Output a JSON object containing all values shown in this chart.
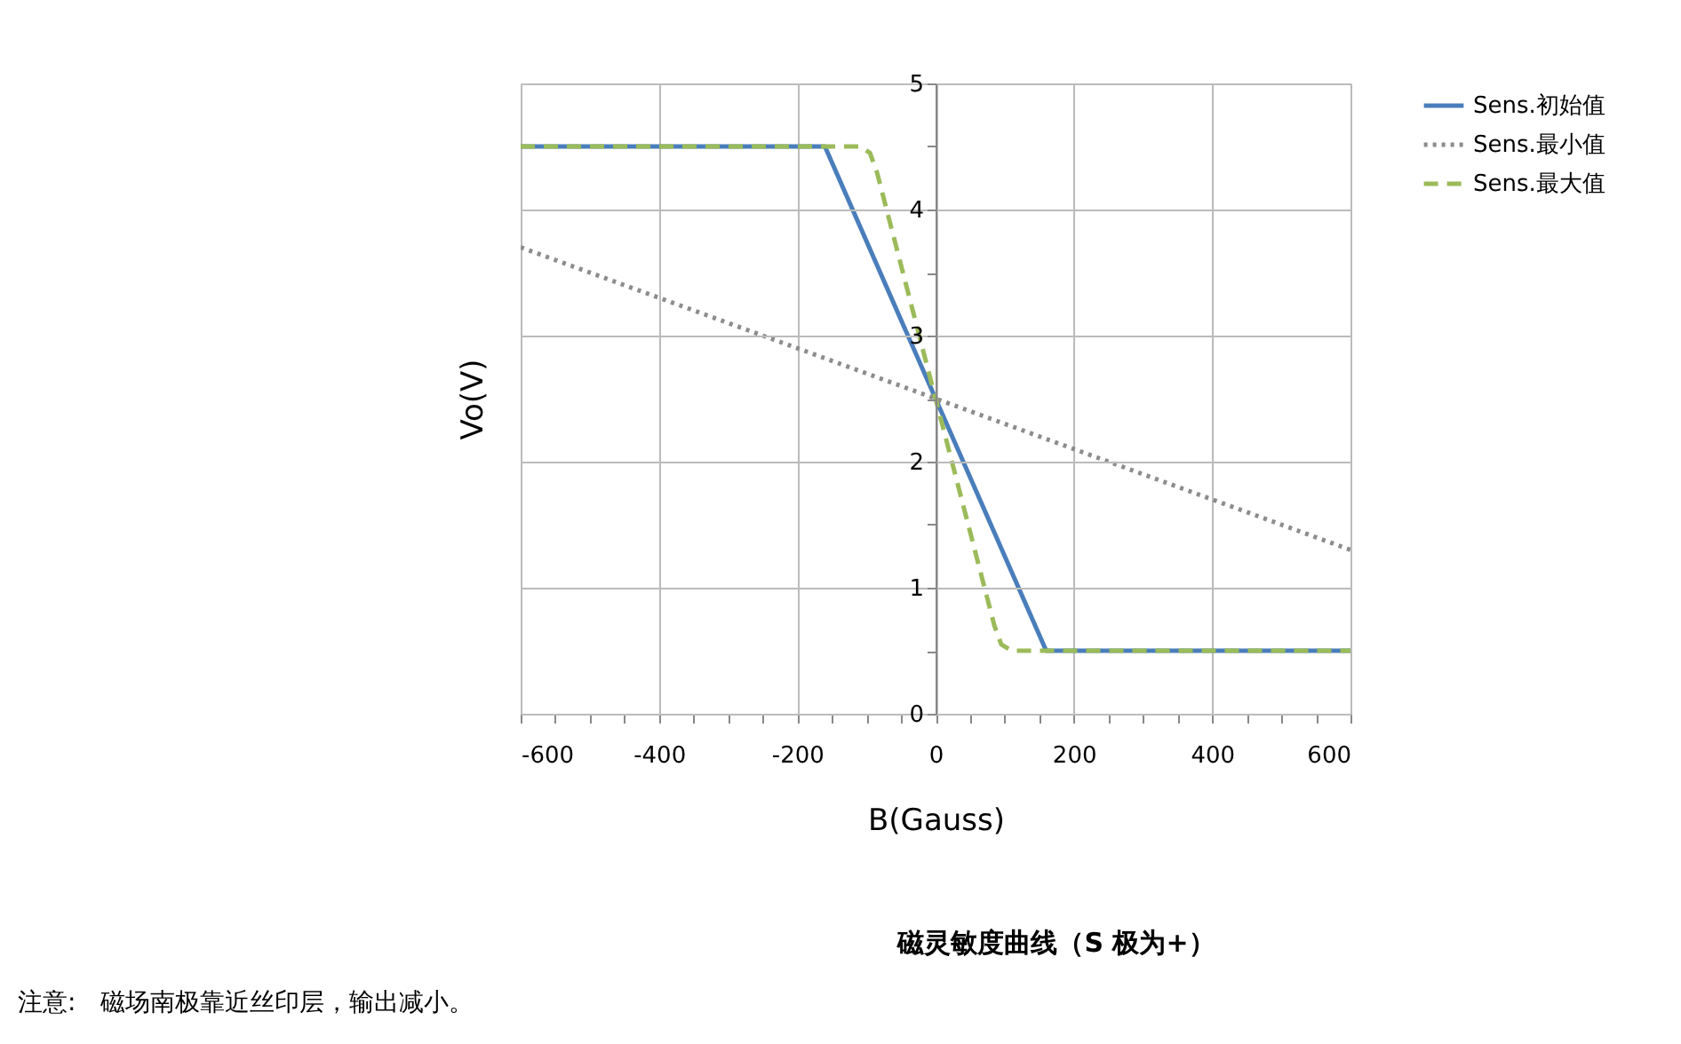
{
  "chart_data": {
    "type": "line",
    "title": "磁灵敏度曲线（S 极为+）",
    "xlabel": "B(Gauss)",
    "ylabel": "Vo(V)",
    "annotations": [
      "注意:　磁场南极靠近丝印层，输出减小。"
    ],
    "series": [
      {
        "name": "Sens.初始值",
        "color": "#4a7ebb",
        "line_style": "solid",
        "x": [
          -600,
          -160,
          160,
          600
        ],
        "values": [
          4.5,
          4.5,
          0.5,
          0.5
        ]
      },
      {
        "name": "Sens.最小值",
        "color": "#8c8c8c",
        "line_style": "dotted",
        "x": [
          -600,
          600
        ],
        "values": [
          3.7,
          1.3
        ]
      },
      {
        "name": "Sens.最大值",
        "color": "#9bbb59",
        "line_style": "dashed",
        "x": [
          -600,
          -110,
          -95,
          -85,
          0,
          85,
          95,
          110,
          600
        ],
        "values": [
          4.5,
          4.5,
          4.45,
          4.3,
          2.5,
          0.7,
          0.55,
          0.5,
          0.5
        ]
      }
    ],
    "xlim": [
      -600,
      600
    ],
    "xticks": [
      -600,
      {
        "value": -550,
        "label": null
      },
      {
        "value": -500,
        "label": null
      },
      {
        "value": -450,
        "label": null
      },
      -400,
      {
        "value": -350,
        "label": null
      },
      {
        "value": -300,
        "label": null
      },
      {
        "value": -250,
        "label": null
      },
      -200,
      {
        "value": -150,
        "label": null
      },
      {
        "value": -100,
        "label": null
      },
      {
        "value": -50,
        "label": null
      },
      0,
      {
        "value": 50,
        "label": null
      },
      {
        "value": 100,
        "label": null
      },
      {
        "value": 150,
        "label": null
      },
      200,
      {
        "value": 250,
        "label": null
      },
      {
        "value": 300,
        "label": null
      },
      {
        "value": 350,
        "label": null
      },
      400,
      {
        "value": 450,
        "label": null
      },
      {
        "value": 500,
        "label": null
      },
      {
        "value": 550,
        "label": null
      },
      600
    ],
    "ylim": [
      0,
      5
    ],
    "yticks": [
      0,
      {
        "value": 0.5,
        "label": null
      },
      1,
      {
        "value": 1.5,
        "label": null
      },
      2,
      {
        "value": 2.5,
        "label": null
      },
      3,
      {
        "value": 3.5,
        "label": null
      },
      4,
      {
        "value": 4.5,
        "label": null
      },
      5
    ],
    "grid": true,
    "legend": "right"
  }
}
